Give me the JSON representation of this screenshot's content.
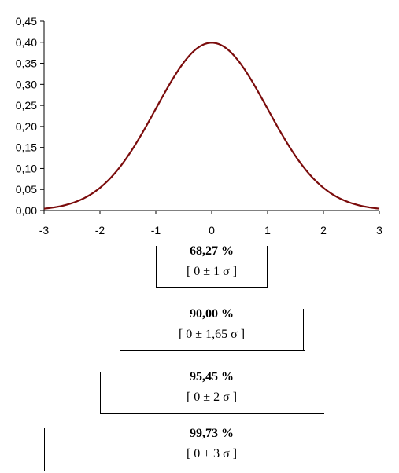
{
  "chart_data": {
    "type": "line",
    "title": "",
    "xlabel": "",
    "ylabel": "",
    "xlim": [
      -3,
      3
    ],
    "ylim": [
      0,
      0.45
    ],
    "x_ticks": [
      "-3",
      "-2",
      "-1",
      "0",
      "1",
      "2",
      "3"
    ],
    "y_ticks": [
      "0,00",
      "0,05",
      "0,10",
      "0,15",
      "0,20",
      "0,25",
      "0,30",
      "0,35",
      "0,40",
      "0,45"
    ],
    "grid": false,
    "legend": "none",
    "line_color": "#7b0c0c",
    "series": [
      {
        "x": [
          -3.0,
          -2.8,
          -2.6,
          -2.4,
          -2.2,
          -2.0,
          -1.8,
          -1.6,
          -1.4,
          -1.2,
          -1.0,
          -0.8,
          -0.6,
          -0.4,
          -0.2,
          0.0,
          0.2,
          0.4,
          0.6,
          0.8,
          1.0,
          1.2,
          1.4,
          1.6,
          1.8,
          2.0,
          2.2,
          2.4,
          2.6,
          2.8,
          3.0
        ],
        "values": [
          0.0044,
          0.0079,
          0.0136,
          0.0224,
          0.0355,
          0.054,
          0.079,
          0.1109,
          0.1497,
          0.1942,
          0.242,
          0.2897,
          0.3332,
          0.3683,
          0.391,
          0.3989,
          0.391,
          0.3683,
          0.3332,
          0.2897,
          0.242,
          0.1942,
          0.1497,
          0.1109,
          0.079,
          0.054,
          0.0355,
          0.0224,
          0.0136,
          0.0079,
          0.0044
        ]
      }
    ]
  },
  "intervals": [
    {
      "percent": "68,27 %",
      "range": "[ 0 ± 1 σ ]",
      "lo": -1,
      "hi": 1
    },
    {
      "percent": "90,00 %",
      "range": "[ 0 ± 1,65 σ ]",
      "lo": -1.65,
      "hi": 1.65
    },
    {
      "percent": "95,45 %",
      "range": "[ 0 ± 2 σ ]",
      "lo": -2,
      "hi": 2
    },
    {
      "percent": "99,73 %",
      "range": "[ 0 ± 3 σ ]",
      "lo": -3,
      "hi": 3
    }
  ]
}
